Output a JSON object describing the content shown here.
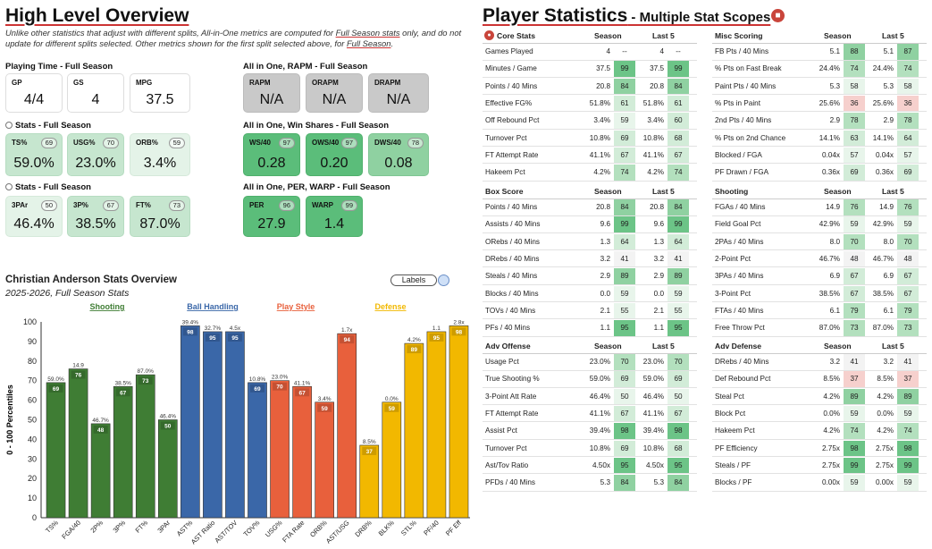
{
  "left": {
    "title": "High Level Overview",
    "note1": "Unlike other statistics that adjust with different splits, All-in-One metrics are computed for ",
    "note_link": "Full Season stats",
    "note2": " only, and do not update for different splits selected. Other metrics shown for the first split selected above, for ",
    "note_link2": "Full Season",
    "note3": ".",
    "sections": {
      "playing_time": "Playing Time - Full Season",
      "stats1": "Stats - Full Season",
      "stats2": "Stats - Full Season",
      "rapm": "All in One, RAPM - Full Season",
      "ws": "All in One, Win Shares - Full Season",
      "per": "All in One, PER, WARP - Full Season"
    },
    "cards": {
      "gp": {
        "label": "GP",
        "value": "4/4"
      },
      "gs": {
        "label": "GS",
        "value": "4"
      },
      "mpg": {
        "label": "MPG",
        "value": "37.5"
      },
      "ts": {
        "label": "TS%",
        "value": "59.0%",
        "pct": "69"
      },
      "usg": {
        "label": "USG%",
        "value": "23.0%",
        "pct": "70"
      },
      "orb": {
        "label": "ORB%",
        "value": "3.4%",
        "pct": "59"
      },
      "par3": {
        "label": "3PAr",
        "value": "46.4%",
        "pct": "50"
      },
      "p3": {
        "label": "3P%",
        "value": "38.5%",
        "pct": "67"
      },
      "ft": {
        "label": "FT%",
        "value": "87.0%",
        "pct": "73"
      },
      "rapm": {
        "label": "RAPM",
        "value": "N/A"
      },
      "orapm": {
        "label": "ORAPM",
        "value": "N/A"
      },
      "drapm": {
        "label": "DRAPM",
        "value": "N/A"
      },
      "ws40": {
        "label": "WS/40",
        "value": "0.28",
        "pct": "97"
      },
      "ows40": {
        "label": "OWS/40",
        "value": "0.20",
        "pct": "97"
      },
      "dws40": {
        "label": "DWS/40",
        "value": "0.08",
        "pct": "78"
      },
      "per": {
        "label": "PER",
        "value": "27.9",
        "pct": "96"
      },
      "warp": {
        "label": "WARP",
        "value": "1.4",
        "pct": "99"
      }
    },
    "chart_title": "Christian Anderson Stats Overview",
    "chart_subtitle": "2025-2026, Full Season Stats",
    "labels_button": "Labels"
  },
  "chart_data": {
    "type": "bar",
    "ylabel": "0 - 100 Percentiles",
    "ylim": [
      0,
      100
    ],
    "yticks": [
      "0",
      "10",
      "20",
      "30",
      "40",
      "50",
      "60",
      "70",
      "80",
      "90",
      "100"
    ],
    "legend": [
      {
        "name": "Shooting",
        "color": "#3f7d34"
      },
      {
        "name": "Ball Handling",
        "color": "#3a67a8"
      },
      {
        "name": "Play Style",
        "color": "#e8603c"
      },
      {
        "name": "Defense",
        "color": "#f2b800"
      }
    ],
    "bars": [
      {
        "cat": "TS%",
        "value": 69,
        "label": "59.0%",
        "group": 0
      },
      {
        "cat": "FGA/40",
        "value": 76,
        "label": "14.9",
        "group": 0
      },
      {
        "cat": "2P%",
        "value": 48,
        "label": "46.7%",
        "group": 0
      },
      {
        "cat": "3P%",
        "value": 67,
        "label": "38.5%",
        "group": 0
      },
      {
        "cat": "FT%",
        "value": 73,
        "label": "87.0%",
        "group": 0
      },
      {
        "cat": "3PAr",
        "value": 50,
        "label": "46.4%",
        "group": 0
      },
      {
        "cat": "AST%",
        "value": 98,
        "label": "39.4%",
        "group": 1
      },
      {
        "cat": "AST Ratio",
        "value": 95,
        "label": "32.7%",
        "group": 1
      },
      {
        "cat": "AST/TOV",
        "value": 95,
        "label": "4.5x",
        "group": 1
      },
      {
        "cat": "TOV%",
        "value": 69,
        "label": "10.8%",
        "group": 1
      },
      {
        "cat": "USG%",
        "value": 70,
        "label": "23.0%",
        "group": 2
      },
      {
        "cat": "FTA Rate",
        "value": 67,
        "label": "41.1%",
        "group": 2
      },
      {
        "cat": "ORB%",
        "value": 59,
        "label": "3.4%",
        "group": 2
      },
      {
        "cat": "AST/USG",
        "value": 94,
        "label": "1.7x",
        "group": 2
      },
      {
        "cat": "DRB%",
        "value": 37,
        "label": "8.5%",
        "group": 3
      },
      {
        "cat": "BLK%",
        "value": 59,
        "label": "0.0%",
        "group": 3
      },
      {
        "cat": "STL%",
        "value": 89,
        "label": "4.2%",
        "group": 3
      },
      {
        "cat": "PF/40",
        "value": 95,
        "label": "1.1",
        "group": 3
      },
      {
        "cat": "PF Eff",
        "value": 98,
        "label": "2.8x",
        "group": 3
      }
    ]
  },
  "right": {
    "title": "Player Statistics",
    "title_sub": " - Multiple Stat Scopes",
    "col_season": "Season",
    "col_last5": "Last 5",
    "tables": [
      {
        "name": "Core Stats",
        "rows": [
          [
            "Games Played",
            "4",
            "--",
            "4",
            "--"
          ],
          [
            "Minutes / Game",
            "37.5",
            "99",
            "37.5",
            "99"
          ],
          [
            "Points / 40 Mins",
            "20.8",
            "84",
            "20.8",
            "84"
          ],
          [
            "Effective FG%",
            "51.8%",
            "61",
            "51.8%",
            "61"
          ],
          [
            "Off Rebound Pct",
            "3.4%",
            "59",
            "3.4%",
            "60"
          ],
          [
            "Turnover Pct",
            "10.8%",
            "69",
            "10.8%",
            "68"
          ],
          [
            "FT Attempt Rate",
            "41.1%",
            "67",
            "41.1%",
            "67"
          ],
          [
            "Hakeem Pct",
            "4.2%",
            "74",
            "4.2%",
            "74"
          ]
        ]
      },
      {
        "name": "Misc Scoring",
        "rows": [
          [
            "FB Pts / 40 Mins",
            "5.1",
            "88",
            "5.1",
            "87"
          ],
          [
            "% Pts on Fast Break",
            "24.4%",
            "74",
            "24.4%",
            "74"
          ],
          [
            "Paint Pts / 40 Mins",
            "5.3",
            "58",
            "5.3",
            "58"
          ],
          [
            "% Pts in Paint",
            "25.6%",
            "36",
            "25.6%",
            "36"
          ],
          [
            "2nd Pts / 40 Mins",
            "2.9",
            "78",
            "2.9",
            "78"
          ],
          [
            "% Pts on 2nd Chance",
            "14.1%",
            "63",
            "14.1%",
            "64"
          ],
          [
            "Blocked / FGA",
            "0.04x",
            "57",
            "0.04x",
            "57"
          ],
          [
            "PF Drawn / FGA",
            "0.36x",
            "69",
            "0.36x",
            "69"
          ]
        ]
      },
      {
        "name": "Box Score",
        "rows": [
          [
            "Points / 40 Mins",
            "20.8",
            "84",
            "20.8",
            "84"
          ],
          [
            "Assists / 40 Mins",
            "9.6",
            "99",
            "9.6",
            "99"
          ],
          [
            "ORebs / 40 Mins",
            "1.3",
            "64",
            "1.3",
            "64"
          ],
          [
            "DRebs / 40 Mins",
            "3.2",
            "41",
            "3.2",
            "41"
          ],
          [
            "Steals / 40 Mins",
            "2.9",
            "89",
            "2.9",
            "89"
          ],
          [
            "Blocks / 40 Mins",
            "0.0",
            "59",
            "0.0",
            "59"
          ],
          [
            "TOVs / 40 Mins",
            "2.1",
            "55",
            "2.1",
            "55"
          ],
          [
            "PFs / 40 Mins",
            "1.1",
            "95",
            "1.1",
            "95"
          ]
        ]
      },
      {
        "name": "Shooting",
        "rows": [
          [
            "FGAs / 40 Mins",
            "14.9",
            "76",
            "14.9",
            "76"
          ],
          [
            "Field Goal Pct",
            "42.9%",
            "59",
            "42.9%",
            "59"
          ],
          [
            "2PAs / 40 Mins",
            "8.0",
            "70",
            "8.0",
            "70"
          ],
          [
            "2-Point Pct",
            "46.7%",
            "48",
            "46.7%",
            "48"
          ],
          [
            "3PAs / 40 Mins",
            "6.9",
            "67",
            "6.9",
            "67"
          ],
          [
            "3-Point Pct",
            "38.5%",
            "67",
            "38.5%",
            "67"
          ],
          [
            "FTAs / 40 Mins",
            "6.1",
            "79",
            "6.1",
            "79"
          ],
          [
            "Free Throw Pct",
            "87.0%",
            "73",
            "87.0%",
            "73"
          ]
        ]
      },
      {
        "name": "Adv Offense",
        "rows": [
          [
            "Usage Pct",
            "23.0%",
            "70",
            "23.0%",
            "70"
          ],
          [
            "True Shooting %",
            "59.0%",
            "69",
            "59.0%",
            "69"
          ],
          [
            "3-Point Att Rate",
            "46.4%",
            "50",
            "46.4%",
            "50"
          ],
          [
            "FT Attempt Rate",
            "41.1%",
            "67",
            "41.1%",
            "67"
          ],
          [
            "Assist Pct",
            "39.4%",
            "98",
            "39.4%",
            "98"
          ],
          [
            "Turnover Pct",
            "10.8%",
            "69",
            "10.8%",
            "68"
          ],
          [
            "Ast/Tov Ratio",
            "4.50x",
            "95",
            "4.50x",
            "95"
          ],
          [
            "PFDs / 40 Mins",
            "5.3",
            "84",
            "5.3",
            "84"
          ]
        ]
      },
      {
        "name": "Adv Defense",
        "rows": [
          [
            "DRebs / 40 Mins",
            "3.2",
            "41",
            "3.2",
            "41"
          ],
          [
            "Def Rebound Pct",
            "8.5%",
            "37",
            "8.5%",
            "37"
          ],
          [
            "Steal Pct",
            "4.2%",
            "89",
            "4.2%",
            "89"
          ],
          [
            "Block Pct",
            "0.0%",
            "59",
            "0.0%",
            "59"
          ],
          [
            "Hakeem Pct",
            "4.2%",
            "74",
            "4.2%",
            "74"
          ],
          [
            "PF Efficiency",
            "2.75x",
            "98",
            "2.75x",
            "98"
          ],
          [
            "Steals / PF",
            "2.75x",
            "99",
            "2.75x",
            "99"
          ],
          [
            "Blocks / PF",
            "0.00x",
            "59",
            "0.00x",
            "59"
          ]
        ]
      }
    ]
  }
}
